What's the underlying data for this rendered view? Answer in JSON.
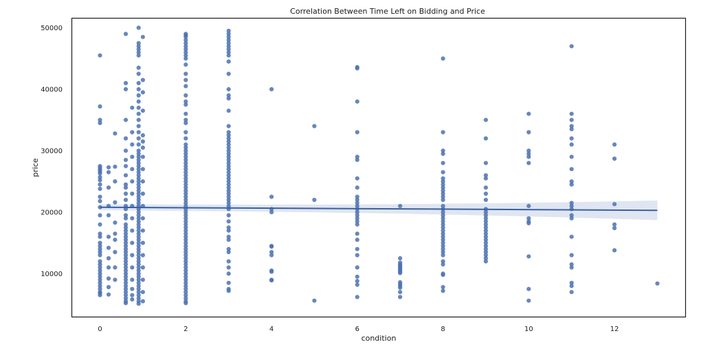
{
  "chart_data": {
    "type": "scatter",
    "title": "Correlation Between Time Left on Bidding and Price",
    "xlabel": "condition",
    "ylabel": "price",
    "xlim": [
      -0.65,
      13.65
    ],
    "ylim": [
      3000,
      51500
    ],
    "xticks": [
      0,
      2,
      4,
      6,
      8,
      10,
      12
    ],
    "yticks": [
      10000,
      20000,
      30000,
      40000,
      50000
    ],
    "grid": false,
    "legend": "none",
    "regression": {
      "x": [
        0,
        13
      ],
      "y": [
        20800,
        20300
      ],
      "ci_halfwidth": [
        500,
        1600
      ]
    },
    "series": [
      {
        "color": "#4c72b0",
        "groups": [
          {
            "x": 0,
            "y": [
              45500,
              37200,
              35000,
              34500,
              27500,
              27200,
              26900,
              26600,
              26300,
              25700,
              25200,
              24500,
              23800,
              22500,
              21800,
              20800,
              19500,
              18000,
              16500,
              16000,
              15000,
              14500,
              14000,
              13500,
              13000,
              12000,
              11500,
              11000,
              10500,
              10000,
              9500,
              9000,
              8500,
              8000,
              7500,
              7000,
              6800,
              6500
            ]
          },
          {
            "x": 0.2,
            "y": [
              27300,
              26500,
              24000,
              21000,
              19500,
              16000,
              14200,
              12500,
              11000,
              9200,
              7800,
              6600
            ]
          },
          {
            "x": 0.35,
            "y": [
              32800,
              27400,
              25000,
              21600,
              18300,
              16500,
              15500,
              13500,
              11000,
              9000
            ]
          },
          {
            "x": 0.6,
            "y": [
              49000,
              41000,
              40000,
              35000,
              32000,
              30000,
              28500,
              27500,
              26000,
              24500,
              24000,
              23000,
              22000,
              21000,
              20500,
              19500,
              19000,
              18000,
              17500,
              17000,
              16500,
              16000,
              15500,
              15000,
              14500,
              14000,
              13500,
              13000,
              12500,
              12000,
              11500,
              11000,
              10500,
              10000,
              9500,
              9000,
              8500,
              8000,
              7500,
              7000,
              6500,
              6000,
              5500,
              5200
            ]
          },
          {
            "x": 0.75,
            "y": [
              37000,
              33000,
              31000,
              29000,
              27000,
              25000,
              23000,
              21000,
              19000,
              17000,
              15000,
              13000,
              11000,
              9000,
              7500,
              6500,
              5800
            ]
          },
          {
            "x": 0.9,
            "y": [
              50000,
              47500,
              47000,
              46500,
              46000,
              45500,
              43500,
              42500,
              41000,
              40000,
              39000,
              38000,
              37000,
              36000,
              35000,
              34000,
              33000,
              32000,
              31000,
              30000,
              29500,
              29000,
              28500,
              28000,
              27500,
              27000,
              26500,
              26000,
              25500,
              25000,
              24500,
              24000,
              23500,
              23000,
              22500,
              22000,
              21500,
              21000,
              20500,
              20000,
              19500,
              19000,
              18500,
              18000,
              17500,
              17000,
              16500,
              16000,
              15500,
              15000,
              14500,
              14000,
              13500,
              13000,
              12500,
              12000,
              11500,
              11000,
              10500,
              10000,
              9500,
              9000,
              8500,
              8000,
              7500,
              7000,
              6500,
              6000,
              5500,
              5100
            ]
          },
          {
            "x": 1.0,
            "y": [
              48500,
              41500,
              39500,
              36500,
              32500,
              31500,
              30500,
              29000,
              27000,
              25000,
              23000,
              21000,
              19000,
              17000,
              15000,
              13000,
              11000,
              9000,
              7000,
              5500
            ]
          },
          {
            "x": 2,
            "y": [
              49000,
              48800,
              48500,
              48000,
              47500,
              47000,
              46500,
              46000,
              45500,
              45000,
              44000,
              42500,
              41500,
              40500,
              39000,
              38000,
              37500,
              36000,
              35000,
              34500,
              33000,
              32000,
              31000,
              30500,
              30000,
              29500,
              29000,
              28500,
              28000,
              27500,
              27000,
              26500,
              26000,
              25500,
              25000,
              24500,
              24000,
              23500,
              23000,
              22500,
              22000,
              21500,
              21000,
              20500,
              20000,
              19500,
              19000,
              18500,
              18000,
              17500,
              17000,
              16500,
              16000,
              15500,
              15000,
              14500,
              14000,
              13500,
              13000,
              12500,
              12000,
              11500,
              11000,
              10500,
              10000,
              9500,
              9000,
              8500,
              8000,
              7500,
              7000,
              6500,
              6000,
              5500,
              5200
            ]
          },
          {
            "x": 3,
            "y": [
              49500,
              49000,
              48500,
              48000,
              47500,
              47000,
              46500,
              46000,
              45500,
              44500,
              42500,
              40000,
              39000,
              38500,
              36500,
              34000,
              33000,
              32500,
              32000,
              31500,
              31000,
              30500,
              30000,
              29500,
              29000,
              28500,
              28000,
              27500,
              27000,
              26500,
              26000,
              25500,
              25000,
              24500,
              24000,
              23500,
              23000,
              22500,
              22000,
              21500,
              21000,
              20500,
              19500,
              18500,
              17500,
              17000,
              16000,
              15500,
              14000,
              13500,
              12000,
              11000,
              10000,
              8500,
              7500,
              7200
            ]
          },
          {
            "x": 4,
            "y": [
              40000,
              22500,
              20500,
              20000,
              14500,
              14400,
              13500,
              13000,
              10500,
              10300,
              9000,
              8900
            ]
          },
          {
            "x": 5,
            "y": [
              34000,
              22000,
              5600
            ]
          },
          {
            "x": 6,
            "y": [
              43600,
              43400,
              38000,
              33000,
              29000,
              28500,
              25500,
              24000,
              22500,
              22000,
              21500,
              21000,
              20500,
              20000,
              19500,
              19000,
              18500,
              18000,
              16500,
              15500,
              14000,
              13000,
              11000,
              9500,
              8800,
              8200,
              6200
            ]
          },
          {
            "x": 7,
            "y": [
              21000,
              12500,
              11800,
              11500,
              11300,
              11100,
              10900,
              10700,
              10500,
              10300,
              10100,
              8600,
              8300,
              8000,
              7700,
              7000,
              6200
            ]
          },
          {
            "x": 8,
            "y": [
              45000,
              33000,
              30000,
              29500,
              28000,
              26500,
              25500,
              25000,
              24500,
              24000,
              23500,
              23000,
              22500,
              22000,
              21000,
              20500,
              20000,
              19500,
              19000,
              18500,
              18000,
              17500,
              17000,
              16500,
              16000,
              15500,
              15000,
              14500,
              14000,
              13500,
              13000,
              12000,
              11500,
              10000,
              9800,
              7800,
              7200
            ]
          },
          {
            "x": 9,
            "y": [
              35000,
              32000,
              28000,
              26000,
              25500,
              24000,
              23000,
              22000,
              20500,
              20000,
              19500,
              19000,
              18500,
              18000,
              17500,
              17000,
              16500,
              16000,
              15500,
              15000,
              14500,
              14000,
              13500,
              13000,
              12500,
              12000
            ]
          },
          {
            "x": 10,
            "y": [
              36000,
              33000,
              30000,
              29500,
              29000,
              28000,
              21000,
              19000,
              18500,
              18200,
              12800,
              7500,
              5600
            ]
          },
          {
            "x": 11,
            "y": [
              47000,
              36000,
              35000,
              34000,
              33500,
              32000,
              31000,
              29000,
              27000,
              25000,
              24500,
              21500,
              21000,
              20500,
              19500,
              19000,
              16000,
              13000,
              11500,
              11000,
              8500,
              8000,
              7000
            ]
          },
          {
            "x": 12,
            "y": [
              31000,
              28700,
              21300,
              18000,
              17400,
              13800
            ]
          },
          {
            "x": 13,
            "y": [
              8400
            ]
          }
        ]
      }
    ]
  }
}
